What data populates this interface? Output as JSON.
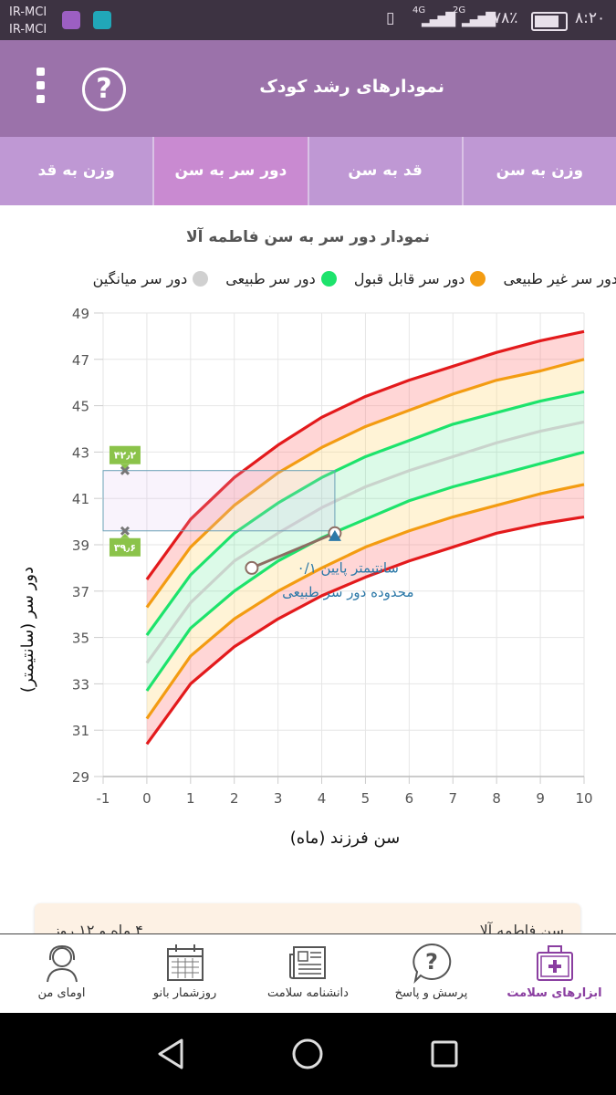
{
  "status_bar": {
    "carrier1": "IR-MCI",
    "carrier2": "IR-MCI",
    "signal1": "4G",
    "signal2": "2G",
    "battery": "۷۸٪",
    "time": "۸:۲۰"
  },
  "app_bar": {
    "title": "نمودارهای رشد کودک",
    "menu_icon": "more-vert-icon",
    "help_icon": "help-icon"
  },
  "tabs": [
    {
      "label": "وزن به قد",
      "active": false
    },
    {
      "label": "دور سر به سن",
      "active": true
    },
    {
      "label": "قد به سن",
      "active": false
    },
    {
      "label": "وزن به سن",
      "active": false
    }
  ],
  "chart_title": "نمودار دور سر به سن فاطمه آلا",
  "legend": [
    {
      "label": "دور سر غیر طبیعی",
      "color": "#e31a1c"
    },
    {
      "label": "دور سر قابل قبول",
      "color": "#f39c12"
    },
    {
      "label": "دور سر طبیعی",
      "color": "#1de36c"
    },
    {
      "label": "دور سر میانگین",
      "color": "#cccccc"
    }
  ],
  "chart_data": {
    "type": "line",
    "xlabel": "سن فرزند (ماه)",
    "ylabel": "دور سر (سانتیمتر)",
    "xlim": [
      -1,
      10
    ],
    "ylim": [
      29,
      49
    ],
    "xticks": [
      -1,
      0,
      1,
      2,
      3,
      4,
      5,
      6,
      7,
      8,
      9,
      10
    ],
    "yticks": [
      29,
      31,
      33,
      35,
      37,
      39,
      41,
      43,
      45,
      47,
      49
    ],
    "grid": true,
    "x": [
      0,
      1,
      2,
      3,
      4,
      5,
      6,
      7,
      8,
      9,
      10
    ],
    "series": [
      {
        "name": "دور سر غیر طبیعی",
        "color": "#e31a1c",
        "values": [
          37.5,
          40.1,
          41.9,
          43.3,
          44.5,
          45.4,
          46.1,
          46.7,
          47.3,
          47.8,
          48.2
        ]
      },
      {
        "name": "دور سر قابل قبول",
        "color": "#f39c12",
        "values": [
          36.3,
          38.9,
          40.7,
          42.1,
          43.2,
          44.1,
          44.8,
          45.5,
          46.1,
          46.5,
          47.0
        ]
      },
      {
        "name": "دور سر طبیعی",
        "color": "#1de36c",
        "values": [
          35.1,
          37.7,
          39.5,
          40.8,
          41.9,
          42.8,
          43.5,
          44.2,
          44.7,
          45.2,
          45.6
        ]
      },
      {
        "name": "دور سر میانگین",
        "color": "#cccccc",
        "values": [
          33.9,
          36.5,
          38.3,
          39.5,
          40.6,
          41.5,
          42.2,
          42.8,
          43.4,
          43.9,
          44.3
        ]
      },
      {
        "name": "دور سر طبیعی",
        "color": "#1de36c",
        "values": [
          32.7,
          35.4,
          37.0,
          38.3,
          39.3,
          40.1,
          40.9,
          41.5,
          42.0,
          42.5,
          43.0
        ]
      },
      {
        "name": "دور سر قابل قبول",
        "color": "#f39c12",
        "values": [
          31.5,
          34.2,
          35.8,
          37.0,
          38.0,
          38.9,
          39.6,
          40.2,
          40.7,
          41.2,
          41.6
        ]
      },
      {
        "name": "دور سر غیر طبیعی",
        "color": "#e31a1c",
        "values": [
          30.4,
          33.0,
          34.6,
          35.8,
          36.8,
          37.6,
          38.3,
          38.9,
          39.5,
          39.9,
          40.2
        ]
      }
    ],
    "measurements": [
      {
        "x": 2.4,
        "y": 38.0,
        "marker": "circle"
      },
      {
        "x": 4.3,
        "y": 39.5,
        "marker": "circle"
      }
    ],
    "current_marker": {
      "x": 4.3,
      "y": 39.4,
      "marker": "triangle"
    },
    "normal_range_box": {
      "x_from": -1,
      "x_to": 4.3,
      "y_low": 39.6,
      "y_high": 42.2
    },
    "range_labels": {
      "high": "۴۲٫۲",
      "low": "۳۹٫۶"
    },
    "annotation_line1": "۰/۱ سانتیمتر پایین",
    "annotation_line2": "محدوده دور سر طبیعی"
  },
  "info_card": {
    "age_label": "سن فاطمه آلا",
    "age_value": "۴ ماه و ۱۲ روز"
  },
  "bottom_nav": [
    {
      "label": "اومای من",
      "icon": "avatar-icon",
      "active": false
    },
    {
      "label": "روزشمار بانو",
      "icon": "calendar-icon",
      "active": false
    },
    {
      "label": "دانشنامه سلامت",
      "icon": "newspaper-icon",
      "active": false
    },
    {
      "label": "پرسش و پاسخ",
      "icon": "question-bubble-icon",
      "active": false
    },
    {
      "label": "ابزارهای سلامت",
      "icon": "medical-kit-icon",
      "active": true
    }
  ],
  "system_nav": {
    "back_icon": "back-icon",
    "home_icon": "home-icon",
    "recents_icon": "recents-icon"
  }
}
